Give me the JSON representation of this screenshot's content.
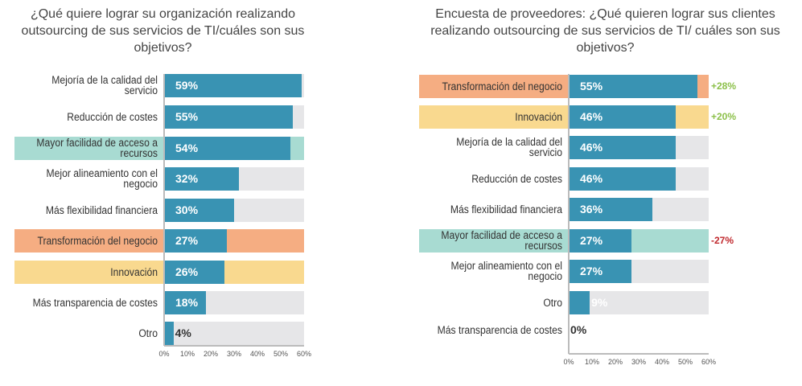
{
  "chart_data": [
    {
      "type": "bar",
      "orientation": "horizontal",
      "title": "¿Qué quiere lograr su organización realizando outsourcing de sus servicios de TI/cuáles son sus objetivos?",
      "xlim": [
        0,
        60
      ],
      "xticks": [
        "0%",
        "10%",
        "20%",
        "30%",
        "40%",
        "50%",
        "60%"
      ],
      "categories": [
        "Mejoría de la calidad del servicio",
        "Reducción de costes",
        "Mayor facilidad de acceso a recursos",
        "Mejor alineamiento con el negocio",
        "Más flexibilidad financiera",
        "Transformación del negocio",
        "Innovación",
        "Más transparencia de costes",
        "Otro"
      ],
      "values": [
        59,
        55,
        54,
        32,
        30,
        27,
        26,
        18,
        4
      ],
      "labels": [
        "59%",
        "55%",
        "54%",
        "32%",
        "30%",
        "27%",
        "26%",
        "18%",
        "4%"
      ],
      "highlights": [
        null,
        null,
        "teal",
        null,
        null,
        "orange",
        "yellow",
        null,
        null
      ],
      "deltas": [
        null,
        null,
        null,
        null,
        null,
        null,
        null,
        null,
        null
      ]
    },
    {
      "type": "bar",
      "orientation": "horizontal",
      "title": "Encuesta de proveedores: ¿Qué quieren lograr sus clientes realizando outsourcing de sus servicios de TI/ cuáles son sus objetivos?",
      "xlim": [
        0,
        60
      ],
      "xticks": [
        "0%",
        "10%",
        "20%",
        "30%",
        "40%",
        "50%",
        "60%"
      ],
      "categories": [
        "Transformación del negocio",
        "Innovación",
        "Mejoría de la calidad del servicio",
        "Reducción de costes",
        "Más flexibilidad financiera",
        "Mayor facilidad de acceso a recursos",
        "Mejor alineamiento con el negocio",
        "Otro",
        "Más transparencia de costes"
      ],
      "values": [
        55,
        46,
        46,
        46,
        36,
        27,
        27,
        9,
        0
      ],
      "labels": [
        "55%",
        "46%",
        "46%",
        "46%",
        "36%",
        "27%",
        "27%",
        "9%",
        "0%"
      ],
      "highlights": [
        "orange",
        "yellow",
        null,
        null,
        null,
        "teal",
        null,
        null,
        null
      ],
      "deltas": [
        "+28%",
        "+20%",
        null,
        null,
        null,
        "-27%",
        null,
        null,
        null
      ]
    }
  ],
  "colors": {
    "bar": "#3993b3",
    "track": "#e6e6e8",
    "teal": "#a8dbd2",
    "orange": "#f5ad82",
    "yellow": "#f9d98f",
    "positive": "#8cc04a",
    "negative": "#c0282d"
  }
}
